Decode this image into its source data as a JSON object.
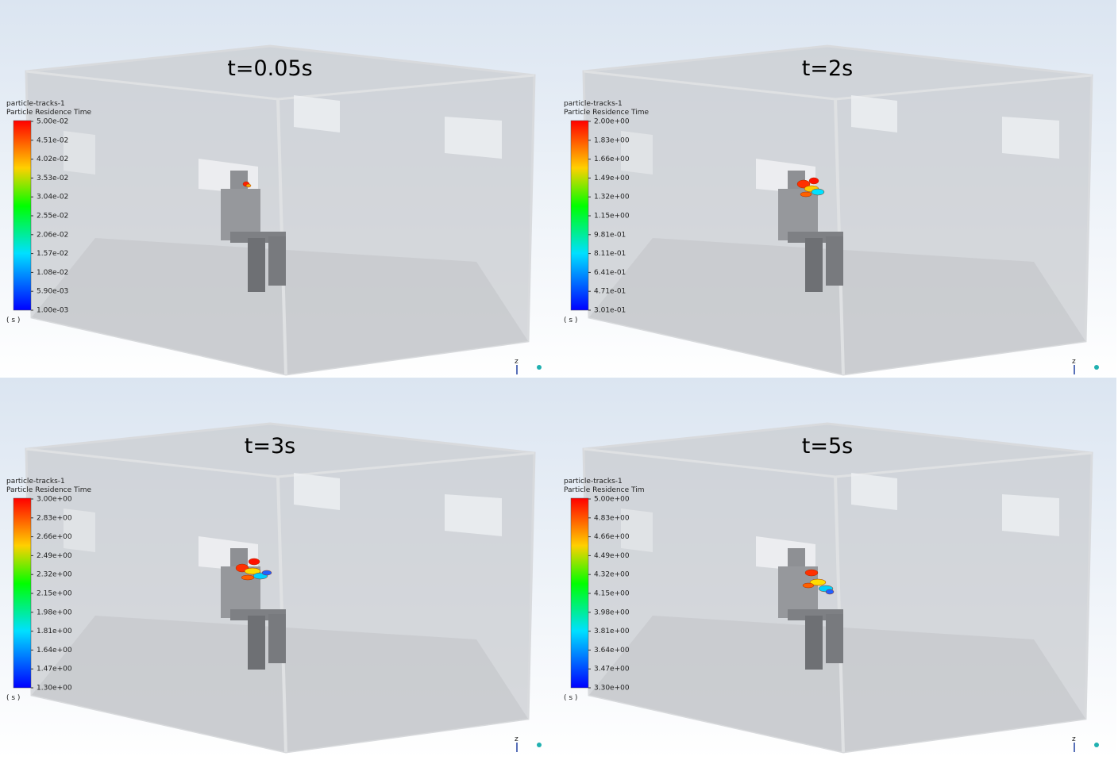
{
  "panels": [
    {
      "title": "t=0.05s",
      "legend": {
        "name": "particle-tracks-1",
        "variable": "Particle Residence Time",
        "labels": [
          "5.00e-02",
          "4.51e-02",
          "4.02e-02",
          "3.53e-02",
          "3.04e-02",
          "2.55e-02",
          "2.06e-02",
          "1.57e-02",
          "1.08e-02",
          "5.90e-03",
          "1.00e-03"
        ],
        "unit": "( s )"
      },
      "axis": "z"
    },
    {
      "title": "t=2s",
      "legend": {
        "name": "particle-tracks-1",
        "variable": "Particle Residence Time",
        "labels": [
          "2.00e+00",
          "1.83e+00",
          "1.66e+00",
          "1.49e+00",
          "1.32e+00",
          "1.15e+00",
          "9.81e-01",
          "8.11e-01",
          "6.41e-01",
          "4.71e-01",
          "3.01e-01"
        ],
        "unit": "( s )"
      },
      "axis": "z"
    },
    {
      "title": "t=3s",
      "legend": {
        "name": "particle-tracks-1",
        "variable": "Particle Residence Time",
        "labels": [
          "3.00e+00",
          "2.83e+00",
          "2.66e+00",
          "2.49e+00",
          "2.32e+00",
          "2.15e+00",
          "1.98e+00",
          "1.81e+00",
          "1.64e+00",
          "1.47e+00",
          "1.30e+00"
        ],
        "unit": "( s )"
      },
      "axis": "z"
    },
    {
      "title": "t=5s",
      "legend": {
        "name": "particle-tracks-1",
        "variable": "Particle Residence Tim",
        "labels": [
          "5.00e+00",
          "4.83e+00",
          "4.66e+00",
          "4.49e+00",
          "4.32e+00",
          "4.15e+00",
          "3.98e+00",
          "3.81e+00",
          "3.64e+00",
          "3.47e+00",
          "3.30e+00"
        ],
        "unit": "( s )"
      },
      "axis": "z"
    }
  ]
}
